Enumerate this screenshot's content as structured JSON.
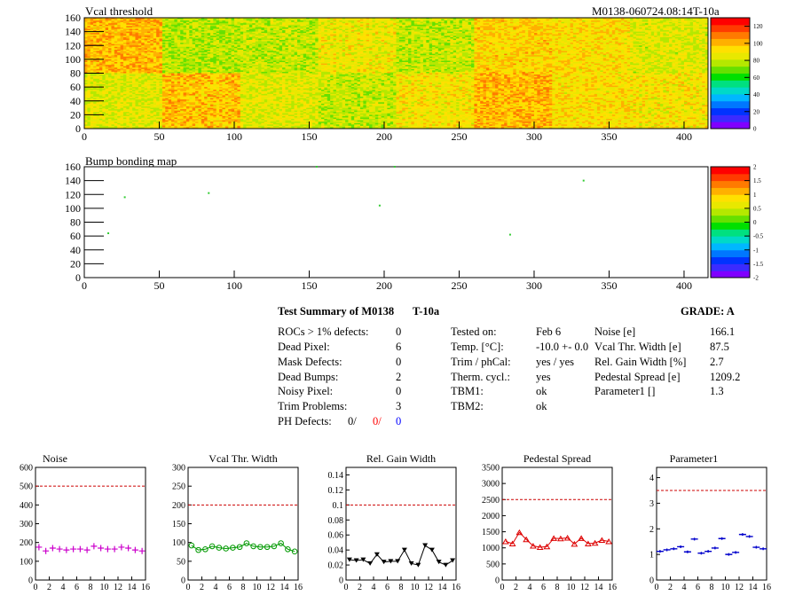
{
  "header": {
    "vcal_title": "Vcal threshold",
    "module_id": "M0138-060724.08:14T-10a",
    "bump_title": "Bump bonding map"
  },
  "colors": {
    "palette": [
      "#8000ff",
      "#3b2bff",
      "#0033ff",
      "#0077ff",
      "#00b7ff",
      "#00d9c8",
      "#00e080",
      "#00e000",
      "#66e000",
      "#b5e800",
      "#e8e800",
      "#ffe000",
      "#ffb000",
      "#ff7a00",
      "#ff3b00",
      "#ff0000"
    ],
    "ref_line": "#cc0000",
    "noise": "#cc00cc",
    "vcal": "#009900",
    "gain": "#000000",
    "pedestal": "#dd0000",
    "param1": "#0000cc"
  },
  "summary": {
    "title": "Test Summary of M0138",
    "tag": "T-10a",
    "grade": "GRADE:  A",
    "defects": [
      {
        "label": "ROCs > 1% defects:",
        "value": "0"
      },
      {
        "label": "Dead Pixel:",
        "value": "6"
      },
      {
        "label": "Mask Defects:",
        "value": "0"
      },
      {
        "label": "Dead Bumps:",
        "value": "2"
      },
      {
        "label": "Noisy Pixel:",
        "value": "0"
      },
      {
        "label": "Trim Problems:",
        "value": "3"
      }
    ],
    "ph_label": "PH Defects:",
    "ph_values": [
      "0/",
      "0/",
      "0"
    ],
    "conditions": [
      {
        "label": "Tested on:",
        "value": "Feb 6"
      },
      {
        "label": "Temp. [°C]:",
        "value": "-10.0 +- 0.0"
      },
      {
        "label": "Trim / phCal:",
        "value": "yes / yes"
      },
      {
        "label": "Therm. cycl.:",
        "value": "yes"
      },
      {
        "label": "TBM1:",
        "value": "ok"
      },
      {
        "label": "TBM2:",
        "value": "ok"
      }
    ],
    "results": [
      {
        "label": "Noise [e]",
        "value": "166.1"
      },
      {
        "label": "Vcal Thr. Width [e]",
        "value": "87.5"
      },
      {
        "label": "Rel. Gain Width [%]",
        "value": "2.7"
      },
      {
        "label": "Pedestal Spread [e]",
        "value": "1209.2"
      },
      {
        "label": "Parameter1 []",
        "value": "1.3"
      }
    ]
  },
  "chart_data": [
    {
      "type": "heatmap",
      "title": "Vcal threshold",
      "x_ticks": [
        0,
        50,
        100,
        150,
        200,
        250,
        300,
        350,
        400
      ],
      "y_ticks": [
        0,
        20,
        40,
        60,
        80,
        100,
        120,
        140,
        160
      ],
      "xlim": [
        0,
        416
      ],
      "ylim": [
        0,
        160
      ],
      "z_ticks": [
        0,
        20,
        40,
        60,
        80,
        100,
        120
      ],
      "zlim": [
        0,
        130
      ],
      "roc_mean_values_top_row": [
        100,
        78,
        80,
        88,
        80,
        95,
        92,
        84
      ],
      "roc_mean_values_bottom_row": [
        85,
        98,
        85,
        80,
        90,
        100,
        92,
        90
      ]
    },
    {
      "type": "heatmap",
      "title": "Bump bonding map",
      "x_ticks": [
        0,
        50,
        100,
        150,
        200,
        250,
        300,
        350,
        400
      ],
      "y_ticks": [
        0,
        20,
        40,
        60,
        80,
        100,
        120,
        140,
        160
      ],
      "xlim": [
        0,
        416
      ],
      "ylim": [
        0,
        160
      ],
      "z_ticks": [
        -2,
        -1.5,
        -1,
        -0.5,
        0,
        0.5,
        1,
        1.5,
        2
      ],
      "zlim": [
        -2,
        2
      ],
      "points": [
        {
          "x": 16,
          "y": 64
        },
        {
          "x": 27,
          "y": 116
        },
        {
          "x": 83,
          "y": 122
        },
        {
          "x": 155,
          "y": 160
        },
        {
          "x": 197,
          "y": 104
        },
        {
          "x": 207,
          "y": 160
        },
        {
          "x": 284,
          "y": 62
        },
        {
          "x": 333,
          "y": 140
        }
      ]
    },
    {
      "type": "scatter",
      "title": "Noise",
      "x_ticks": [
        0,
        2,
        4,
        6,
        8,
        10,
        12,
        14,
        16
      ],
      "y_ticks": [
        0,
        100,
        200,
        300,
        400,
        500,
        600
      ],
      "xlim": [
        0,
        16
      ],
      "ylim": [
        0,
        600
      ],
      "reference": 500,
      "marker": "plus",
      "values": [
        175,
        155,
        170,
        165,
        160,
        165,
        165,
        160,
        180,
        170,
        165,
        165,
        175,
        170,
        160,
        155
      ]
    },
    {
      "type": "line",
      "title": "Vcal Thr. Width",
      "x_ticks": [
        0,
        2,
        4,
        6,
        8,
        10,
        12,
        14,
        16
      ],
      "y_ticks": [
        0,
        50,
        100,
        150,
        200,
        250,
        300
      ],
      "xlim": [
        0,
        16
      ],
      "ylim": [
        0,
        300
      ],
      "reference": 200,
      "marker": "circle",
      "values": [
        92,
        80,
        82,
        90,
        86,
        84,
        86,
        88,
        98,
        90,
        88,
        88,
        90,
        98,
        82,
        76
      ]
    },
    {
      "type": "line",
      "title": "Rel. Gain Width",
      "x_ticks": [
        0,
        2,
        4,
        6,
        8,
        10,
        12,
        14,
        16
      ],
      "y_ticks": [
        0,
        0.02,
        0.04,
        0.06,
        0.08,
        0.1,
        0.12,
        0.14
      ],
      "xlim": [
        0,
        16
      ],
      "ylim": [
        0,
        0.15
      ],
      "reference": 0.1,
      "marker": "triangle-down",
      "values": [
        0.027,
        0.026,
        0.027,
        0.022,
        0.034,
        0.024,
        0.025,
        0.025,
        0.04,
        0.022,
        0.02,
        0.046,
        0.04,
        0.024,
        0.02,
        0.026
      ]
    },
    {
      "type": "line",
      "title": "Pedestal Spread",
      "x_ticks": [
        0,
        2,
        4,
        6,
        8,
        10,
        12,
        14,
        16
      ],
      "y_ticks": [
        0,
        500,
        1000,
        1500,
        2000,
        2500,
        3000,
        3500
      ],
      "xlim": [
        0,
        16
      ],
      "ylim": [
        0,
        3500
      ],
      "reference": 2500,
      "marker": "triangle-up",
      "values": [
        1200,
        1130,
        1480,
        1260,
        1060,
        1020,
        1040,
        1300,
        1290,
        1310,
        1120,
        1300,
        1130,
        1150,
        1240,
        1200
      ]
    },
    {
      "type": "scatter",
      "title": "Parameter1",
      "x_ticks": [
        0,
        2,
        4,
        6,
        8,
        10,
        12,
        14,
        16
      ],
      "y_ticks": [
        0,
        1,
        2,
        3,
        4
      ],
      "xlim": [
        0,
        16
      ],
      "ylim": [
        0,
        4.4
      ],
      "reference": 3.5,
      "marker": "hbar",
      "values": [
        1.12,
        1.18,
        1.22,
        1.3,
        1.1,
        1.6,
        1.05,
        1.12,
        1.25,
        1.62,
        1.0,
        1.08,
        1.78,
        1.7,
        1.28,
        1.22
      ]
    }
  ]
}
